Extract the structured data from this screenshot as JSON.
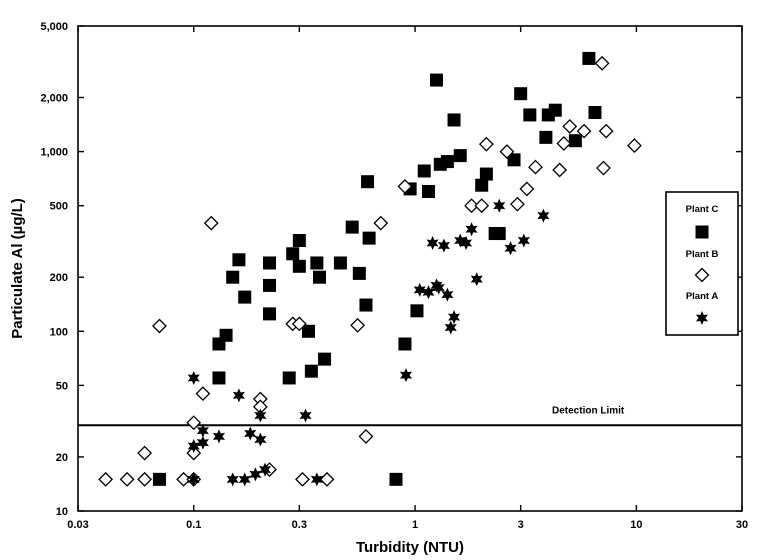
{
  "chart_data": {
    "type": "scatter",
    "title": "",
    "xlabel": "Turbidity (NTU)",
    "ylabel": "Particulate Al (µg/L)",
    "x_scale": "log",
    "y_scale": "log",
    "xlim": [
      0.03,
      30
    ],
    "ylim": [
      10,
      5000
    ],
    "x_ticks": [
      0.03,
      0.1,
      0.3,
      1,
      3,
      10,
      30
    ],
    "x_tick_labels": [
      "0.03",
      "0.1",
      "0.3",
      "1",
      "3",
      "10",
      "30"
    ],
    "y_ticks": [
      10,
      20,
      50,
      100,
      200,
      500,
      1000,
      2000,
      5000
    ],
    "y_tick_labels": [
      "10",
      "20",
      "50",
      "100",
      "200",
      "500",
      "1,000",
      "2,000",
      "5,000"
    ],
    "grid": false,
    "legend_position": "right",
    "reference_line": {
      "y": 30,
      "label": "Detection Limit"
    },
    "series": [
      {
        "name": "Plant C",
        "marker": "filled-square",
        "points": [
          [
            0.07,
            15
          ],
          [
            0.13,
            55
          ],
          [
            0.13,
            85
          ],
          [
            0.14,
            95
          ],
          [
            0.15,
            200
          ],
          [
            0.16,
            250
          ],
          [
            0.17,
            155
          ],
          [
            0.22,
            240
          ],
          [
            0.22,
            180
          ],
          [
            0.22,
            125
          ],
          [
            0.27,
            55
          ],
          [
            0.28,
            270
          ],
          [
            0.3,
            230
          ],
          [
            0.3,
            320
          ],
          [
            0.33,
            100
          ],
          [
            0.34,
            60
          ],
          [
            0.36,
            240
          ],
          [
            0.37,
            200
          ],
          [
            0.39,
            70
          ],
          [
            0.46,
            240
          ],
          [
            0.52,
            380
          ],
          [
            0.56,
            210
          ],
          [
            0.6,
            140
          ],
          [
            0.61,
            680
          ],
          [
            0.62,
            330
          ],
          [
            0.82,
            15
          ],
          [
            0.9,
            85
          ],
          [
            0.95,
            620
          ],
          [
            1.02,
            130
          ],
          [
            1.1,
            780
          ],
          [
            1.15,
            600
          ],
          [
            1.25,
            2500
          ],
          [
            1.3,
            850
          ],
          [
            1.4,
            880
          ],
          [
            1.5,
            1500
          ],
          [
            1.6,
            950
          ],
          [
            2.0,
            650
          ],
          [
            2.1,
            750
          ],
          [
            2.3,
            350
          ],
          [
            2.4,
            350
          ],
          [
            2.8,
            900
          ],
          [
            3.0,
            2100
          ],
          [
            3.3,
            1600
          ],
          [
            3.9,
            1200
          ],
          [
            4.0,
            1600
          ],
          [
            4.3,
            1700
          ],
          [
            5.3,
            1150
          ],
          [
            6.1,
            3300
          ],
          [
            6.5,
            1650
          ]
        ]
      },
      {
        "name": "Plant B",
        "marker": "open-diamond",
        "points": [
          [
            0.04,
            15
          ],
          [
            0.05,
            15
          ],
          [
            0.06,
            21
          ],
          [
            0.06,
            15
          ],
          [
            0.07,
            107
          ],
          [
            0.09,
            15
          ],
          [
            0.1,
            15
          ],
          [
            0.1,
            31
          ],
          [
            0.1,
            21
          ],
          [
            0.11,
            45
          ],
          [
            0.12,
            400
          ],
          [
            0.2,
            42
          ],
          [
            0.2,
            38
          ],
          [
            0.22,
            17
          ],
          [
            0.28,
            110
          ],
          [
            0.3,
            110
          ],
          [
            0.31,
            15
          ],
          [
            0.4,
            15
          ],
          [
            0.55,
            108
          ],
          [
            0.6,
            26
          ],
          [
            0.7,
            400
          ],
          [
            0.9,
            640
          ],
          [
            1.8,
            500
          ],
          [
            2.0,
            500
          ],
          [
            2.1,
            1100
          ],
          [
            2.6,
            1000
          ],
          [
            2.9,
            510
          ],
          [
            3.2,
            620
          ],
          [
            3.5,
            820
          ],
          [
            4.5,
            790
          ],
          [
            4.7,
            1110
          ],
          [
            5.0,
            1380
          ],
          [
            5.8,
            1300
          ],
          [
            7.0,
            3100
          ],
          [
            7.1,
            810
          ],
          [
            7.3,
            1300
          ],
          [
            9.8,
            1080
          ]
        ]
      },
      {
        "name": "Plant A",
        "marker": "filled-star",
        "points": [
          [
            0.1,
            55
          ],
          [
            0.1,
            23
          ],
          [
            0.1,
            15
          ],
          [
            0.11,
            28
          ],
          [
            0.11,
            24
          ],
          [
            0.13,
            26
          ],
          [
            0.15,
            15
          ],
          [
            0.16,
            44
          ],
          [
            0.17,
            15
          ],
          [
            0.18,
            27
          ],
          [
            0.19,
            16
          ],
          [
            0.2,
            34
          ],
          [
            0.2,
            25
          ],
          [
            0.21,
            17
          ],
          [
            0.32,
            34
          ],
          [
            0.36,
            15
          ],
          [
            0.91,
            57
          ],
          [
            1.05,
            170
          ],
          [
            1.15,
            165
          ],
          [
            1.2,
            310
          ],
          [
            1.25,
            180
          ],
          [
            1.28,
            175
          ],
          [
            1.35,
            300
          ],
          [
            1.4,
            160
          ],
          [
            1.45,
            105
          ],
          [
            1.5,
            120
          ],
          [
            1.6,
            320
          ],
          [
            1.7,
            310
          ],
          [
            1.8,
            370
          ],
          [
            1.9,
            195
          ],
          [
            2.4,
            500
          ],
          [
            2.7,
            290
          ],
          [
            3.1,
            320
          ],
          [
            3.8,
            440
          ]
        ]
      }
    ]
  }
}
